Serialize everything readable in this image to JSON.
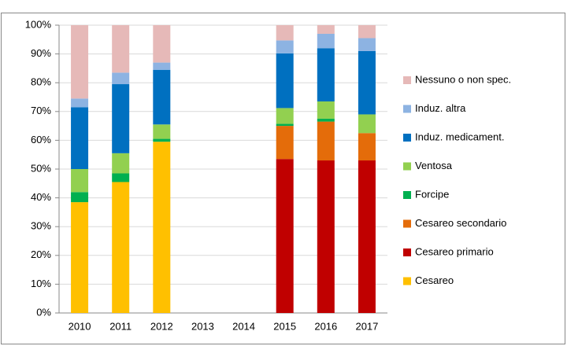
{
  "chart_data": {
    "type": "stacked_bar",
    "categories": [
      "2010",
      "2011",
      "2012",
      "2013",
      "2014",
      "2015",
      "2016",
      "2017"
    ],
    "series": [
      {
        "name": "Cesareo",
        "color": "#ffc000",
        "values": [
          38.5,
          45.5,
          59.5,
          null,
          null,
          0,
          0,
          0
        ]
      },
      {
        "name": "Cesareo primario",
        "color": "#c00000",
        "values": [
          0,
          0,
          0,
          null,
          null,
          53.5,
          53,
          53
        ]
      },
      {
        "name": "Cesareo secondario",
        "color": "#e46c0a",
        "values": [
          0,
          0,
          0,
          null,
          null,
          11.5,
          13.5,
          9.5
        ]
      },
      {
        "name": "Forcipe",
        "color": "#00b050",
        "values": [
          3.5,
          3,
          1,
          null,
          null,
          0.7,
          1,
          0
        ]
      },
      {
        "name": "Ventosa",
        "color": "#92d050",
        "values": [
          8,
          7,
          5,
          null,
          null,
          5.5,
          6,
          6.5
        ]
      },
      {
        "name": "Induz. medicament.",
        "color": "#0070c0",
        "values": [
          21.5,
          24,
          19,
          null,
          null,
          19,
          18.5,
          22
        ]
      },
      {
        "name": "Induz. altra",
        "color": "#8db3e2",
        "values": [
          3,
          4,
          2.5,
          null,
          null,
          4.5,
          5,
          4.5
        ]
      },
      {
        "name": "Nessuno o non spec.",
        "color": "#e6b9b8",
        "values": [
          25.5,
          16.5,
          13,
          null,
          null,
          5.3,
          3,
          4.5
        ]
      }
    ],
    "ylim": [
      0,
      100
    ],
    "yticks": [
      {
        "value": 0,
        "label": "0%"
      },
      {
        "value": 10,
        "label": "10%"
      },
      {
        "value": 20,
        "label": "20%"
      },
      {
        "value": 30,
        "label": "30%"
      },
      {
        "value": 40,
        "label": "40%"
      },
      {
        "value": 50,
        "label": "50%"
      },
      {
        "value": 60,
        "label": "60%"
      },
      {
        "value": 70,
        "label": "70%"
      },
      {
        "value": 80,
        "label": "80%"
      },
      {
        "value": 90,
        "label": "90%"
      },
      {
        "value": 100,
        "label": "100%"
      }
    ],
    "grid": true,
    "legend": "right"
  }
}
